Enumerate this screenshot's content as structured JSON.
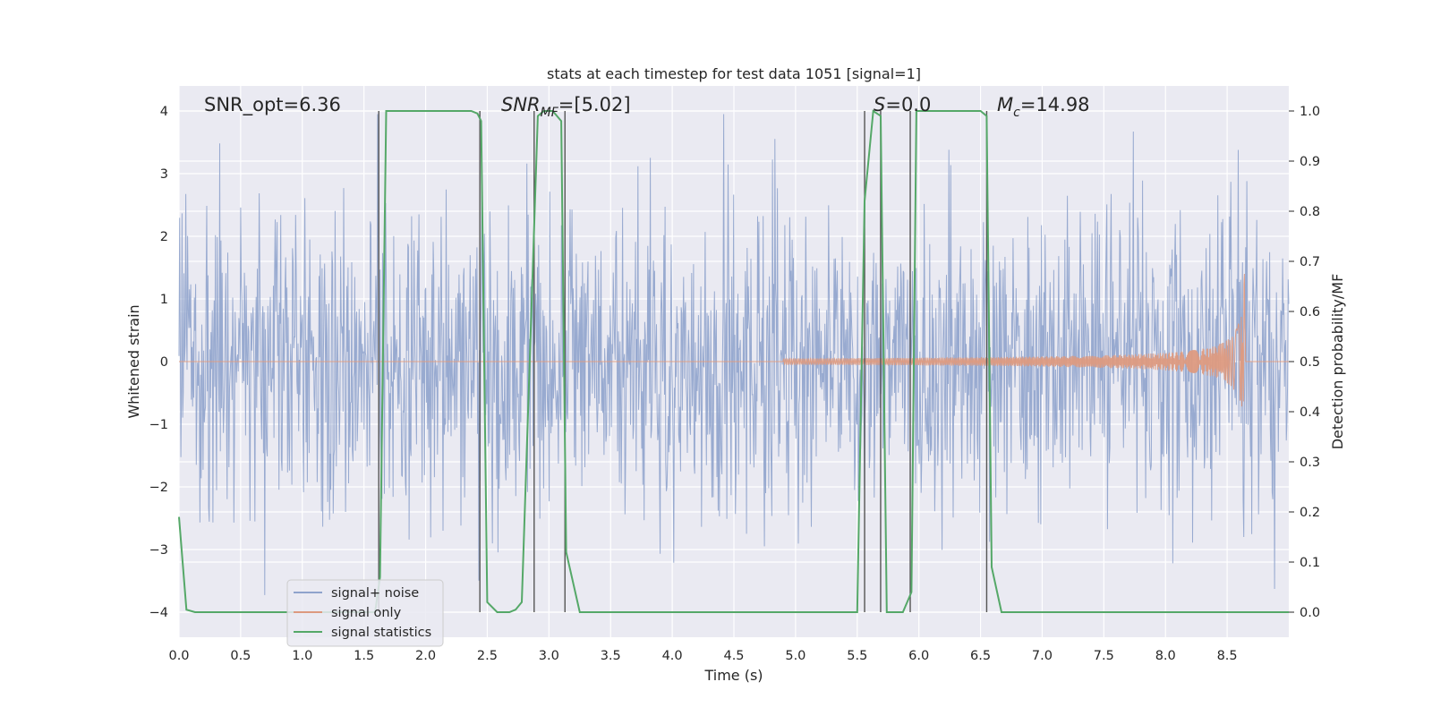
{
  "chart_data": {
    "type": "line",
    "title": "stats at each timestep for test data 1051 [signal=1]",
    "xlabel": "Time (s)",
    "ylabel_left": "Whitened strain",
    "ylabel_right": "Detection probability/MF",
    "xlim": [
      0.0,
      9.0
    ],
    "ylim_left": [
      -4.4,
      4.4
    ],
    "ylim_right": [
      -0.05,
      1.05
    ],
    "grid": true,
    "legend_position": "lower-left",
    "x_ticks": [
      "0.0",
      "0.5",
      "1.0",
      "1.5",
      "2.0",
      "2.5",
      "3.0",
      "3.5",
      "4.0",
      "4.5",
      "5.0",
      "5.5",
      "6.0",
      "6.5",
      "7.0",
      "7.5",
      "8.0",
      "8.5"
    ],
    "y_ticks_left": [
      "4",
      "3",
      "2",
      "1",
      "0",
      "−1",
      "−2",
      "−3",
      "−4"
    ],
    "y_ticks_right": [
      "1.0",
      "0.9",
      "0.8",
      "0.7",
      "0.6",
      "0.5",
      "0.4",
      "0.3",
      "0.2",
      "0.1",
      "0.0"
    ],
    "annotations": {
      "snr_opt": "SNR_opt=6.36",
      "snr_mf_main": "SNR",
      "snr_mf_sub": "MF",
      "snr_mf_rest": "=[5.02]",
      "s_main": "S",
      "s_rest": "=0.0",
      "mc_main": "M",
      "mc_sub": "c",
      "mc_rest": "=14.98"
    },
    "series": [
      {
        "name": "signal+ noise",
        "color": "#8fa3cc",
        "description": "whitened noisy strain, amplitude roughly within ±3.5, sampled over 0–9 s"
      },
      {
        "name": "signal only",
        "color": "#dd9a7f",
        "description": "chirp waveform growing from ~0 near 4.9 s to peak amplitude ~1.4 at ~8.65 s, then zero"
      },
      {
        "name": "signal statistics",
        "color": "#55a868",
        "axis": "right",
        "x": [
          0.0,
          0.06,
          0.13,
          1.59,
          1.63,
          1.68,
          2.37,
          2.42,
          2.45,
          2.5,
          2.58,
          2.68,
          2.73,
          2.78,
          2.91,
          2.96,
          3.03,
          3.1,
          3.14,
          3.25,
          5.5,
          5.56,
          5.63,
          5.69,
          5.74,
          5.82,
          5.87,
          5.94,
          5.98,
          6.5,
          6.55,
          6.59,
          6.67,
          9.0
        ],
        "y": [
          0.19,
          0.005,
          0.0,
          0.0,
          0.07,
          1.0,
          1.0,
          0.995,
          0.98,
          0.02,
          0.0,
          0.0,
          0.005,
          0.02,
          0.99,
          1.0,
          1.0,
          0.98,
          0.12,
          0.0,
          0.0,
          0.82,
          1.0,
          0.99,
          0.0,
          0.0,
          0.0,
          0.04,
          1.0,
          1.0,
          0.99,
          0.09,
          0.0,
          0.0
        ]
      }
    ],
    "vertical_markers_x": [
      1.62,
      2.44,
      2.88,
      3.13,
      5.56,
      5.69,
      5.93,
      6.55
    ],
    "legend": [
      {
        "label": "signal+ noise",
        "color": "#8fa3cc"
      },
      {
        "label": "signal only",
        "color": "#dd9a7f"
      },
      {
        "label": "signal statistics",
        "color": "#55a868"
      }
    ]
  }
}
